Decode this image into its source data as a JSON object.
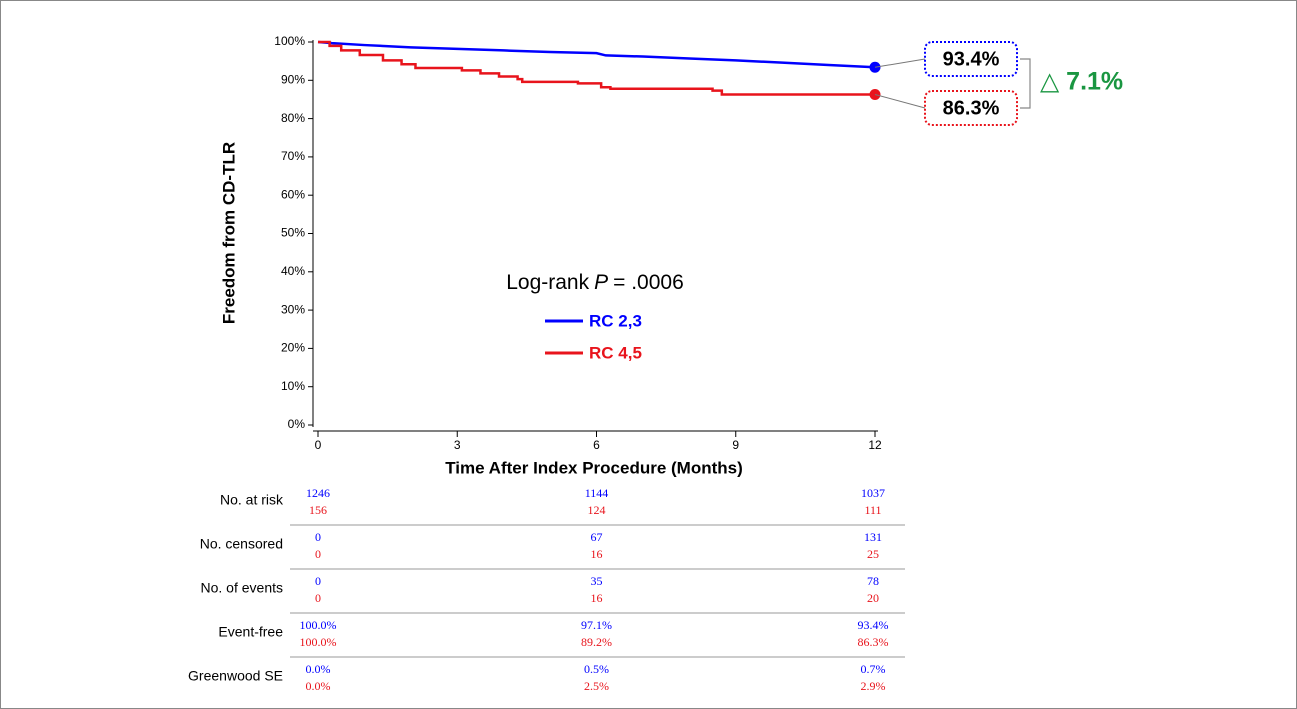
{
  "chart_data": {
    "type": "line",
    "step": true,
    "y_label": "Freedom from CD-TLR",
    "x_label": "Time After Index Procedure (Months)",
    "xlim": [
      0,
      12
    ],
    "xticks": [
      0,
      3,
      6,
      9,
      12
    ],
    "ylim": [
      0,
      100
    ],
    "yticks": [
      {
        "value": 0,
        "label": "0%"
      },
      {
        "value": 10,
        "label": "10%"
      },
      {
        "value": 20,
        "label": "20%"
      },
      {
        "value": 30,
        "label": "30%"
      },
      {
        "value": 40,
        "label": "40%"
      },
      {
        "value": 50,
        "label": "50%"
      },
      {
        "value": 60,
        "label": "60%"
      },
      {
        "value": 70,
        "label": "70%"
      },
      {
        "value": 80,
        "label": "80%"
      },
      {
        "value": 90,
        "label": "90%"
      },
      {
        "value": 100,
        "label": "100%"
      }
    ],
    "grid": false,
    "legend": "center",
    "annotation": {
      "prefix": "Log-rank",
      "italic": "P",
      "suffix": "= .0006"
    },
    "difference_label": "△ 7.1%",
    "difference_color": "#1a9641",
    "series": [
      {
        "name": "RC 2,3",
        "color": "#0000ff",
        "end_label": "93.4%",
        "x": [
          0,
          0.3,
          1,
          2,
          3,
          4,
          5,
          6,
          6.2,
          7,
          8,
          9,
          10,
          11,
          12
        ],
        "values": [
          100,
          99.7,
          99.2,
          98.6,
          98.2,
          97.8,
          97.4,
          97.1,
          96.5,
          96.2,
          95.7,
          95.2,
          94.6,
          94.0,
          93.4
        ]
      },
      {
        "name": "RC 4,5",
        "color": "#e8141c",
        "end_label": "86.3%",
        "x": [
          0,
          0.25,
          0.25,
          0.5,
          0.5,
          0.9,
          0.9,
          1.4,
          1.4,
          1.8,
          1.8,
          2.1,
          2.1,
          3.1,
          3.1,
          3.5,
          3.5,
          3.9,
          3.9,
          4.3,
          4.3,
          4.4,
          4.4,
          5.6,
          5.6,
          6.1,
          6.1,
          6.3,
          6.3,
          8.5,
          8.5,
          8.7,
          8.7,
          12
        ],
        "values": [
          100,
          100,
          99,
          99,
          97.8,
          97.8,
          96.6,
          96.6,
          95.2,
          95.2,
          94.2,
          94.2,
          93.2,
          93.2,
          92.6,
          92.6,
          91.8,
          91.8,
          91.0,
          91.0,
          90.3,
          90.3,
          89.6,
          89.6,
          89.2,
          89.2,
          88.2,
          88.2,
          87.8,
          87.8,
          87.3,
          87.3,
          86.3,
          86.3
        ]
      }
    ],
    "risk_table": {
      "times": [
        0,
        6,
        12
      ],
      "rows": [
        {
          "label": "No. at risk",
          "values": [
            [
              "1246",
              "1144",
              "1037"
            ],
            [
              "156",
              "124",
              "111"
            ]
          ]
        },
        {
          "label": "No. censored",
          "values": [
            [
              "0",
              "67",
              "131"
            ],
            [
              "0",
              "16",
              "25"
            ]
          ]
        },
        {
          "label": "No. of events",
          "values": [
            [
              "0",
              "35",
              "78"
            ],
            [
              "0",
              "16",
              "20"
            ]
          ]
        },
        {
          "label": "Event-free",
          "values": [
            [
              "100.0%",
              "97.1%",
              "93.4%"
            ],
            [
              "100.0%",
              "89.2%",
              "86.3%"
            ]
          ]
        },
        {
          "label": "Greenwood SE",
          "values": [
            [
              "0.0%",
              "0.5%",
              "0.7%"
            ],
            [
              "0.0%",
              "2.5%",
              "2.9%"
            ]
          ]
        }
      ]
    }
  }
}
